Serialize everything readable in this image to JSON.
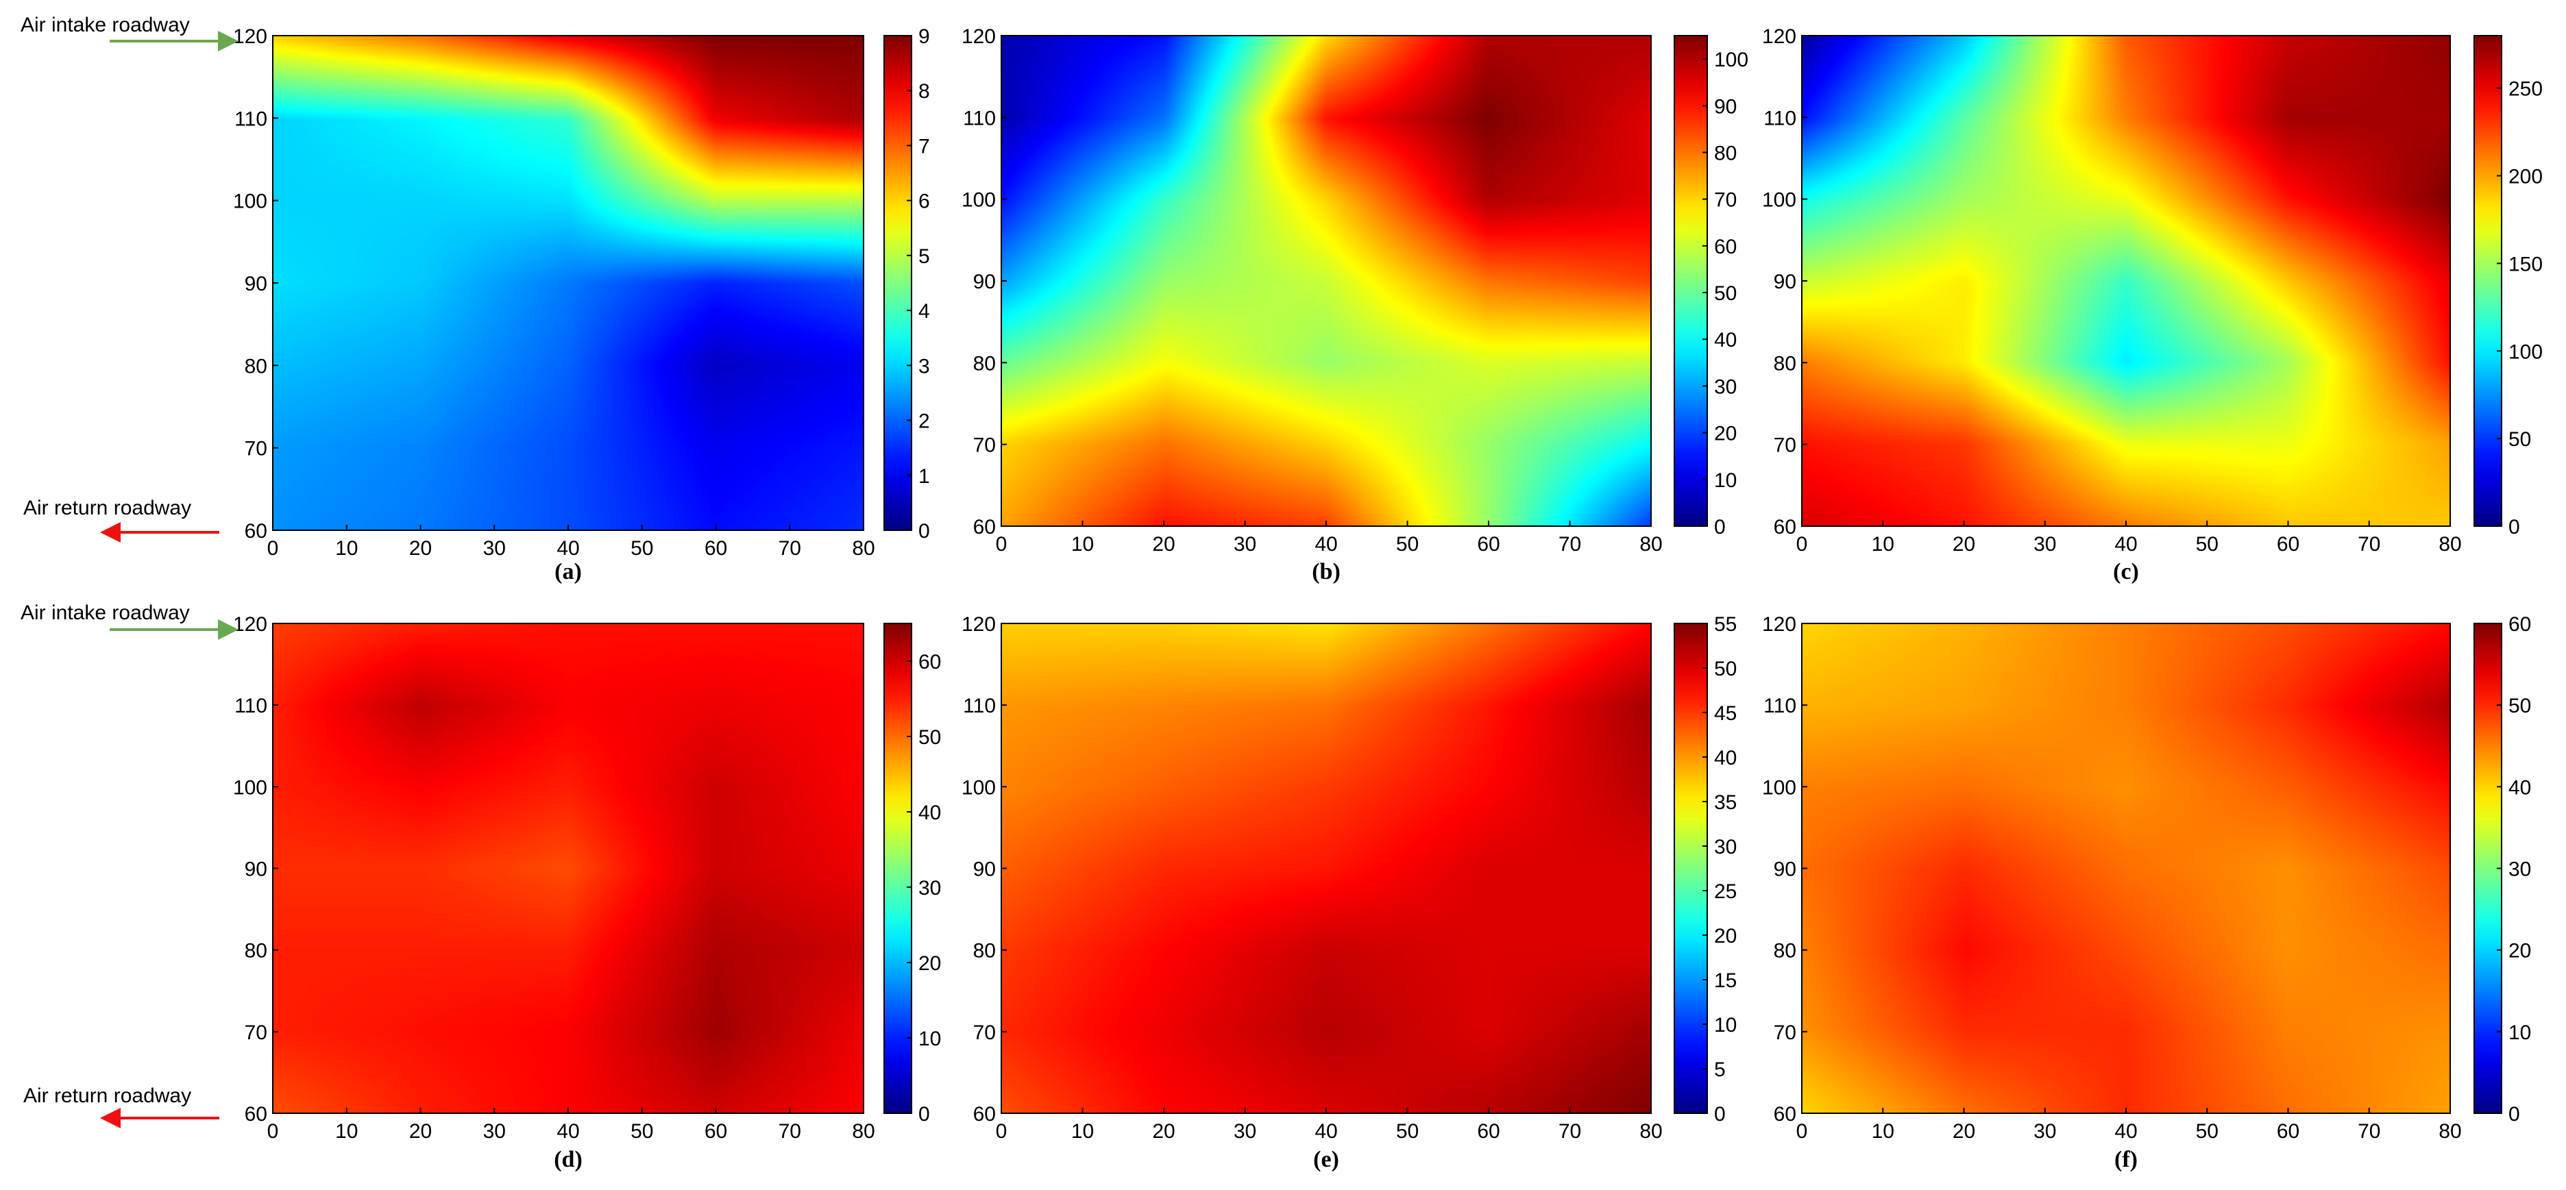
{
  "colorscale": "jet",
  "colors": {
    "intake_arrow": "#6aa84f",
    "return_arrow": "#ee1111",
    "axis": "#000000"
  },
  "annotations": {
    "air_intake_roadway": "Air intake roadway",
    "air_return_roadway": "Air return roadway"
  },
  "chart_data": [
    {
      "type": "heatmap",
      "panel_label": "(a)",
      "x": {
        "lim": [
          0,
          80
        ],
        "ticks": [
          0,
          10,
          20,
          30,
          40,
          50,
          60,
          70,
          80
        ]
      },
      "y": {
        "lim": [
          60,
          120
        ],
        "ticks": [
          60,
          70,
          80,
          90,
          100,
          110,
          120
        ]
      },
      "colorbar": {
        "lim": [
          0,
          9
        ],
        "ticks": [
          0,
          1,
          2,
          3,
          4,
          5,
          6,
          7,
          8,
          9
        ]
      },
      "grid": false,
      "values": [
        [
          6.0,
          6.8,
          8.0,
          9.0,
          9.0
        ],
        [
          3.0,
          3.3,
          3.8,
          8.0,
          8.6
        ],
        [
          3.0,
          3.0,
          3.1,
          5.0,
          5.0
        ],
        [
          3.1,
          2.9,
          2.2,
          1.4,
          1.8
        ],
        [
          2.8,
          2.6,
          2.0,
          0.6,
          1.0
        ],
        [
          2.5,
          2.3,
          1.8,
          1.0,
          1.3
        ],
        [
          2.4,
          2.2,
          1.8,
          1.2,
          1.5
        ]
      ]
    },
    {
      "type": "heatmap",
      "panel_label": "(b)",
      "x": {
        "lim": [
          0,
          80
        ],
        "ticks": [
          0,
          10,
          20,
          30,
          40,
          50,
          60,
          70,
          80
        ]
      },
      "y": {
        "lim": [
          60,
          120
        ],
        "ticks": [
          60,
          70,
          80,
          90,
          100,
          110,
          120
        ]
      },
      "colorbar": {
        "lim": [
          0,
          105
        ],
        "ticks": [
          0,
          10,
          20,
          30,
          40,
          50,
          60,
          70,
          80,
          90,
          100
        ]
      },
      "grid": false,
      "values": [
        [
          5,
          15,
          70,
          100,
          100
        ],
        [
          5,
          25,
          90,
          105,
          95
        ],
        [
          15,
          45,
          70,
          100,
          95
        ],
        [
          30,
          55,
          60,
          80,
          85
        ],
        [
          50,
          65,
          55,
          62,
          60
        ],
        [
          70,
          80,
          70,
          55,
          40
        ],
        [
          75,
          90,
          85,
          55,
          20
        ]
      ]
    },
    {
      "type": "heatmap",
      "panel_label": "(c)",
      "x": {
        "lim": [
          0,
          80
        ],
        "ticks": [
          0,
          10,
          20,
          30,
          40,
          50,
          60,
          70,
          80
        ]
      },
      "y": {
        "lim": [
          60,
          120
        ],
        "ticks": [
          60,
          70,
          80,
          90,
          100,
          110,
          120
        ]
      },
      "colorbar": {
        "lim": [
          0,
          280
        ],
        "ticks": [
          0,
          50,
          100,
          150,
          200,
          250
        ]
      },
      "grid": false,
      "values": [
        [
          10,
          90,
          220,
          260,
          275
        ],
        [
          40,
          130,
          210,
          270,
          270
        ],
        [
          110,
          150,
          170,
          240,
          280
        ],
        [
          160,
          180,
          120,
          190,
          250
        ],
        [
          210,
          180,
          100,
          150,
          240
        ],
        [
          240,
          230,
          170,
          170,
          200
        ],
        [
          255,
          240,
          210,
          190,
          190
        ]
      ]
    },
    {
      "type": "heatmap",
      "panel_label": "(d)",
      "x": {
        "lim": [
          0,
          80
        ],
        "ticks": [
          0,
          10,
          20,
          30,
          40,
          50,
          60,
          70,
          80
        ]
      },
      "y": {
        "lim": [
          60,
          120
        ],
        "ticks": [
          60,
          70,
          80,
          90,
          100,
          110,
          120
        ]
      },
      "colorbar": {
        "lim": [
          0,
          65
        ],
        "ticks": [
          0,
          10,
          20,
          30,
          40,
          50,
          60
        ]
      },
      "grid": false,
      "values": [
        [
          53,
          55,
          56,
          56,
          56
        ],
        [
          55,
          61,
          57,
          58,
          57
        ],
        [
          55,
          57,
          55,
          60,
          57
        ],
        [
          54,
          54,
          52,
          60,
          58
        ],
        [
          55,
          55,
          55,
          62,
          60
        ],
        [
          55,
          56,
          57,
          63,
          58
        ],
        [
          52,
          55,
          57,
          60,
          57
        ]
      ]
    },
    {
      "type": "heatmap",
      "panel_label": "(e)",
      "x": {
        "lim": [
          0,
          80
        ],
        "ticks": [
          0,
          10,
          20,
          30,
          40,
          50,
          60,
          70,
          80
        ]
      },
      "y": {
        "lim": [
          60,
          120
        ],
        "ticks": [
          60,
          70,
          80,
          90,
          100,
          110,
          120
        ]
      },
      "colorbar": {
        "lim": [
          0,
          55
        ],
        "ticks": [
          0,
          5,
          10,
          15,
          20,
          25,
          30,
          35,
          40,
          45,
          50,
          55
        ]
      },
      "grid": false,
      "values": [
        [
          37,
          37,
          36,
          42,
          48
        ],
        [
          40,
          41,
          42,
          47,
          53
        ],
        [
          41,
          43,
          45,
          48,
          52
        ],
        [
          43,
          46,
          47,
          50,
          50
        ],
        [
          45,
          48,
          51,
          50,
          50
        ],
        [
          46,
          49,
          52,
          50,
          53
        ],
        [
          44,
          48,
          50,
          52,
          55
        ]
      ]
    },
    {
      "type": "heatmap",
      "panel_label": "(f)",
      "x": {
        "lim": [
          0,
          80
        ],
        "ticks": [
          0,
          10,
          20,
          30,
          40,
          50,
          60,
          70,
          80
        ]
      },
      "y": {
        "lim": [
          60,
          120
        ],
        "ticks": [
          60,
          70,
          80,
          90,
          100,
          110,
          120
        ]
      },
      "colorbar": {
        "lim": [
          0,
          60
        ],
        "ticks": [
          0,
          10,
          20,
          30,
          40,
          50,
          60
        ]
      },
      "grid": false,
      "values": [
        [
          40,
          42,
          45,
          48,
          52
        ],
        [
          42,
          43,
          45,
          50,
          57
        ],
        [
          45,
          46,
          44,
          47,
          52
        ],
        [
          46,
          50,
          46,
          44,
          48
        ],
        [
          45,
          52,
          48,
          44,
          46
        ],
        [
          44,
          50,
          50,
          45,
          44
        ],
        [
          40,
          46,
          50,
          46,
          43
        ]
      ]
    }
  ]
}
